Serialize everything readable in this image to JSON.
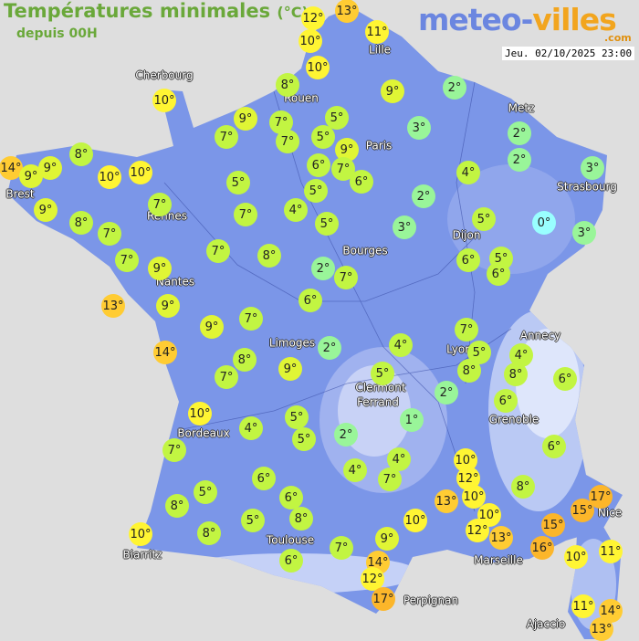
{
  "header": {
    "title": "Températures minimales",
    "unit": "(°C)",
    "subtitle": "depuis 00H",
    "datetime": "Jeu. 02/10/2025 23:00"
  },
  "logo": {
    "part1": "meteo-",
    "part2": "villes",
    "suffix": ".com"
  },
  "colors": {
    "background": "#dedede",
    "land": "#7b96e8",
    "cold_0": "#99ffff",
    "cool_1_3": "#99f599",
    "mild_4_8": "#c2f542",
    "warm_9": "#e0f535",
    "warm_10_12": "#fff533",
    "hot_13_14": "#ffcc33",
    "hot_15_17": "#fcb62a"
  },
  "cities": [
    "Cherbourg",
    "Rouen",
    "Lille",
    "Metz",
    "Paris",
    "Strasbourg",
    "Brest",
    "Rennes",
    "Dijon",
    "Bourges",
    "Nantes",
    "Limoges",
    "Lyon",
    "Annecy",
    "Clermont",
    "Ferrand",
    "Grenoble",
    "Bordeaux",
    "Toulouse",
    "Biarritz",
    "Marseille",
    "Nice",
    "Perpignan",
    "Ajaccio"
  ],
  "temperatures": [
    12,
    13,
    10,
    11,
    10,
    8,
    10,
    9,
    2,
    9,
    7,
    5,
    7,
    7,
    5,
    3,
    9,
    2,
    14,
    9,
    9,
    8,
    10,
    10,
    6,
    7,
    6,
    4,
    2,
    3,
    5,
    7,
    9,
    5,
    2,
    8,
    7,
    7,
    4,
    5,
    3,
    5,
    0,
    3,
    7,
    7,
    8,
    6,
    5,
    6,
    9,
    2,
    7,
    13,
    9,
    6,
    9,
    7,
    14,
    2,
    4,
    7,
    5,
    4,
    8,
    7,
    9,
    8,
    8,
    6,
    5,
    2,
    6,
    10,
    5,
    1,
    2,
    4,
    5,
    7,
    6,
    4,
    4,
    10,
    7,
    6,
    12,
    8,
    5,
    6,
    10,
    13,
    17,
    15,
    8,
    10,
    10,
    5,
    8,
    12,
    15,
    13,
    9,
    8,
    10,
    16,
    7,
    10,
    11,
    14,
    6,
    12,
    17,
    11,
    14,
    13
  ],
  "unit_symbol": "°"
}
